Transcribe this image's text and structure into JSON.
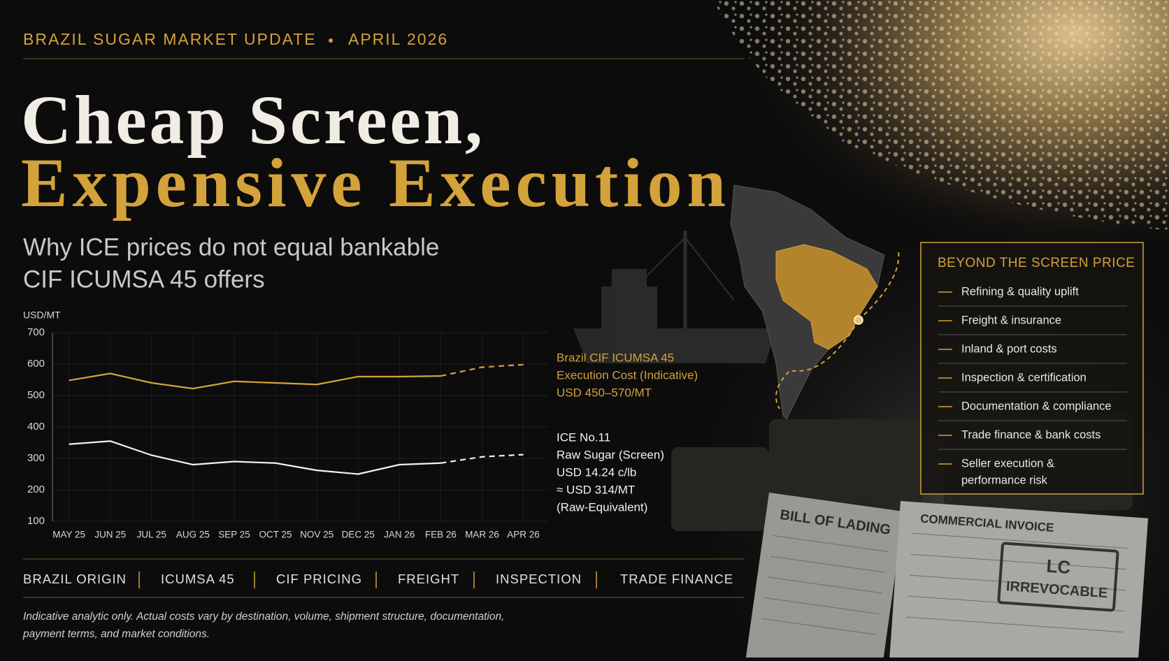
{
  "header": {
    "kicker": "BRAZIL SUGAR MARKET UPDATE",
    "date": "APRIL 2026",
    "title_line1": "Cheap Screen,",
    "title_line2": "Expensive Execution",
    "subtitle_line1": "Why ICE prices do not equal bankable",
    "subtitle_line2": "CIF ICUMSA 45 offers"
  },
  "chart_data": {
    "type": "line",
    "y_unit": "USD/MT",
    "categories": [
      "MAY 25",
      "JUN 25",
      "JUL 25",
      "AUG 25",
      "SEP 25",
      "OCT 25",
      "NOV 25",
      "DEC 25",
      "JAN 26",
      "FEB 26",
      "MAR 26",
      "APR 26"
    ],
    "ylim": [
      100,
      700
    ],
    "yticks": [
      100,
      200,
      300,
      400,
      500,
      600,
      700
    ],
    "grid": true,
    "dashed_after": 9,
    "series": [
      {
        "name": "Brazil CIF ICUMSA 45",
        "notes": [
          "Execution Cost (Indicative)",
          "USD 450–570/MT"
        ],
        "color": "#d4a23a",
        "values": [
          548,
          570,
          540,
          522,
          545,
          540,
          535,
          560,
          560,
          562,
          590,
          598
        ]
      },
      {
        "name": "ICE No.11",
        "notes": [
          "Raw Sugar (Screen)",
          "USD 14.24 c/lb",
          "≈ USD 314/MT",
          "(Raw-Equivalent)"
        ],
        "color": "#f2f2f2",
        "values": [
          345,
          355,
          310,
          280,
          290,
          285,
          262,
          250,
          280,
          285,
          305,
          312
        ]
      }
    ]
  },
  "sidebar": {
    "title": "BEYOND THE SCREEN PRICE",
    "items": [
      [
        "Refining & quality uplift"
      ],
      [
        "Freight & insurance"
      ],
      [
        "Inland & port costs"
      ],
      [
        "Inspection & certification"
      ],
      [
        "Documentation & compliance"
      ],
      [
        "Trade finance & bank costs"
      ],
      [
        "Seller execution &",
        "performance risk"
      ]
    ]
  },
  "footer": {
    "tags": [
      "BRAZIL ORIGIN",
      "ICUMSA 45",
      "CIF PRICING",
      "FREIGHT",
      "INSPECTION",
      "TRADE FINANCE"
    ],
    "disclaimer_line1": "Indicative analytic only. Actual costs vary by destination, volume, shipment structure, documentation,",
    "disclaimer_line2": "payment terms, and market conditions."
  },
  "documents": {
    "bill": "BILL OF LADING",
    "invoice": "COMMERCIAL INVOICE",
    "stamp_line1": "LC",
    "stamp_line2": "IRREVOCABLE"
  }
}
